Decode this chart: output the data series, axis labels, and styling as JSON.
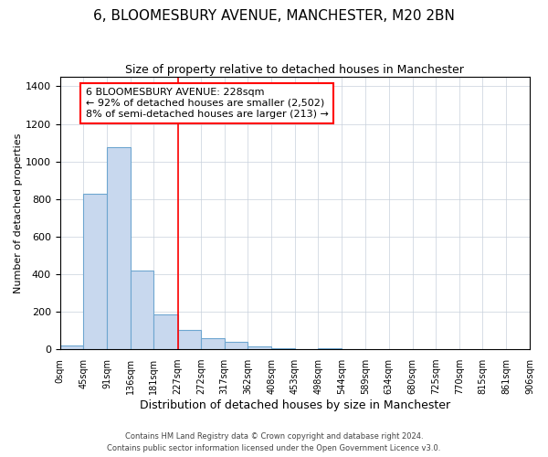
{
  "title": "6, BLOOMESBURY AVENUE, MANCHESTER, M20 2BN",
  "subtitle": "Size of property relative to detached houses in Manchester",
  "xlabel": "Distribution of detached houses by size in Manchester",
  "ylabel": "Number of detached properties",
  "bin_edges": [
    0,
    45,
    91,
    136,
    181,
    227,
    272,
    317,
    362,
    408,
    453,
    498,
    544,
    589,
    634,
    680,
    725,
    770,
    815,
    861,
    906
  ],
  "bar_heights": [
    20,
    830,
    1075,
    420,
    185,
    105,
    60,
    40,
    15,
    5,
    2,
    5,
    2,
    0,
    0,
    0,
    0,
    0,
    0,
    0
  ],
  "bar_color": "#c8d8ee",
  "bar_edge_color": "#6ea6d0",
  "red_line_x": 227,
  "annotation_lines": [
    "6 BLOOMESBURY AVENUE: 228sqm",
    "← 92% of detached houses are smaller (2,502)",
    "8% of semi-detached houses are larger (213) →"
  ],
  "ylim": [
    0,
    1450
  ],
  "xlim": [
    0,
    906
  ],
  "yticks": [
    0,
    200,
    400,
    600,
    800,
    1000,
    1200,
    1400
  ],
  "footnote1": "Contains HM Land Registry data © Crown copyright and database right 2024.",
  "footnote2": "Contains public sector information licensed under the Open Government Licence v3.0.",
  "background_color": "#ffffff",
  "plot_bg_color": "#ffffff",
  "grid_color": "#c8d0dc",
  "title_fontsize": 11,
  "subtitle_fontsize": 9,
  "xlabel_fontsize": 9,
  "ylabel_fontsize": 8,
  "tick_fontsize": 7,
  "annot_fontsize": 8
}
